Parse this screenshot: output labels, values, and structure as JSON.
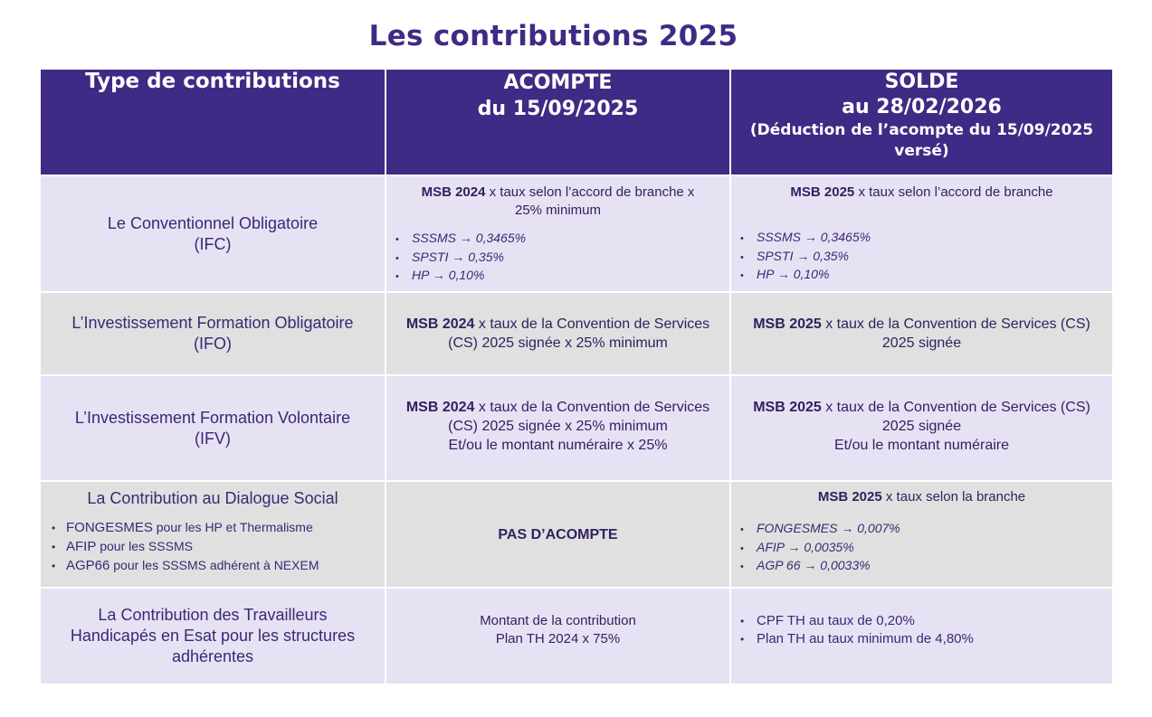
{
  "title": "Les contributions 2025",
  "header": {
    "col1": "Type de contributions",
    "col2_line1": "ACOMPTE",
    "col2_line2": "du 15/09/2025",
    "col3_line1": "SOLDE",
    "col3_line2": "au 28/02/2026",
    "col3_line3": "(Déduction de l’acompte du 15/09/2025",
    "col3_line4": "versé)"
  },
  "rows": [
    {
      "type_line1": "Le Conventionnel Obligatoire",
      "type_line2": "(IFC)",
      "acompte_bold": "MSB 2024",
      "acompte_text1": " x taux selon l’accord de branche x",
      "acompte_text2": "25% minimum",
      "acompte_bullets": [
        "SSSMS → 0,3465%",
        "SPSTI → 0,35%",
        "HP → 0,10%"
      ],
      "solde_bold": "MSB 2025",
      "solde_text1": " x taux selon l’accord de branche",
      "solde_bullets": [
        "SSSMS → 0,3465%",
        "SPSTI → 0,35%",
        "HP → 0,10%"
      ]
    },
    {
      "type_line1": "L’Investissement Formation Obligatoire",
      "type_line2": "(IFO)",
      "acompte_bold": "MSB 2024",
      "acompte_text1": " x taux de la Convention de Services",
      "acompte_text2": "(CS) 2025 signée x 25% minimum",
      "solde_bold": "MSB 2025",
      "solde_text1": " x taux de la Convention de Services (CS)",
      "solde_text2": "2025 signée"
    },
    {
      "type_line1": "L’Investissement Formation Volontaire",
      "type_line2": "(IFV)",
      "acompte_bold": "MSB 2024",
      "acompte_text1": " x taux de la Convention de Services",
      "acompte_text2": "(CS) 2025 signée x 25% minimum",
      "acompte_text3": "Et/ou le montant numéraire x 25%",
      "solde_bold": "MSB 2025",
      "solde_text1": " x taux de la Convention de Services (CS)",
      "solde_text2": "2025 signée",
      "solde_text3": "Et/ou le montant numéraire"
    },
    {
      "type_line1": "La Contribution au Dialogue Social",
      "type_bullets": [
        {
          "name": "FONGESMES",
          "rest": " pour les HP et Thermalisme"
        },
        {
          "name": "AFIP",
          "rest": " pour les SSSMS"
        },
        {
          "name": "AGP66",
          "rest": " pour les SSSMS adhérent à NEXEM"
        }
      ],
      "acompte_bold": "PAS D’ACOMPTE",
      "solde_bold": "MSB 2025",
      "solde_text1": " x taux selon la branche",
      "solde_bullets": [
        "FONGESMES → 0,007%",
        "AFIP → 0,0035%",
        "AGP 66 → 0,0033%"
      ]
    },
    {
      "type_line1": "La Contribution des Travailleurs",
      "type_line2": "Handicapés en Esat pour les structures",
      "type_line3": "adhérentes",
      "acompte_text1": "Montant de la contribution",
      "acompte_text2": "Plan TH 2024 x 75%",
      "solde_bullets": [
        "CPF TH au taux de 0,20%",
        "Plan TH au taux minimum de 4,80%"
      ]
    }
  ],
  "colors": {
    "header_bg": "#3f2a85",
    "row_light": "#e6e2f4",
    "row_grey": "#e0e0e0",
    "text": "#33205f"
  }
}
